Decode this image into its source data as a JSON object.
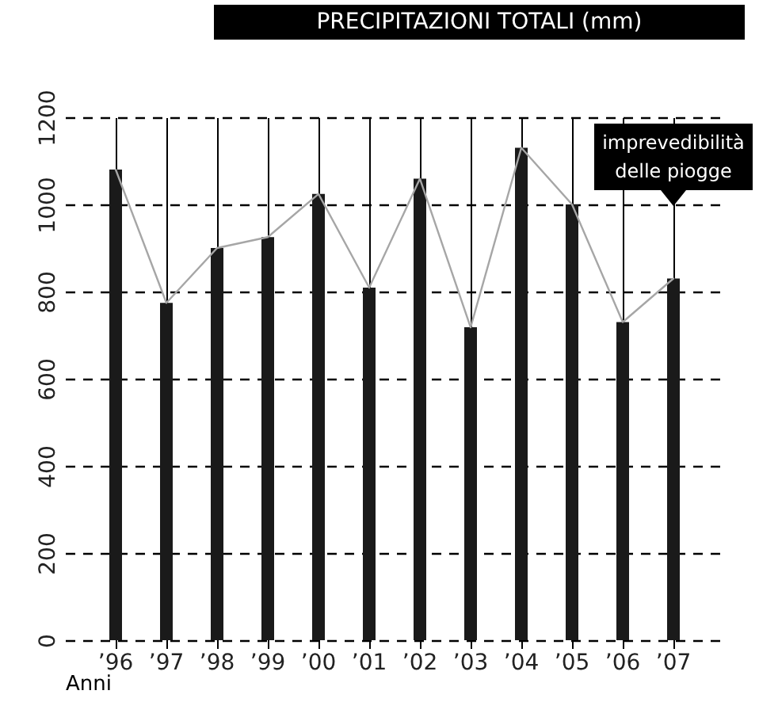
{
  "chart_data": {
    "type": "bar",
    "title": "PRECIPITAZIONI TOTALI (mm)",
    "xlabel": "Anni",
    "categories": [
      "’96",
      "’97",
      "’98",
      "’99",
      "’00",
      "’01",
      "’02",
      "’03",
      "’04",
      "’05",
      "’06",
      "’07"
    ],
    "series": [
      {
        "color": "#1a1a1a",
        "values": [
          1080,
          774,
          900,
          925,
          1024,
          809,
          1059,
          718,
          1130,
          1000,
          730,
          830
        ]
      },
      {
        "type": "line",
        "color": "#a6a6a6",
        "values": [
          1080,
          774,
          900,
          925,
          1024,
          809,
          1059,
          718,
          1130,
          1000,
          730,
          830
        ]
      }
    ],
    "ylim": [
      0,
      1200
    ],
    "yticks": [
      0,
      200,
      400,
      600,
      800,
      1000,
      1200
    ],
    "grid": true,
    "annotations": [
      "imprevedibilità delle piogge"
    ]
  }
}
